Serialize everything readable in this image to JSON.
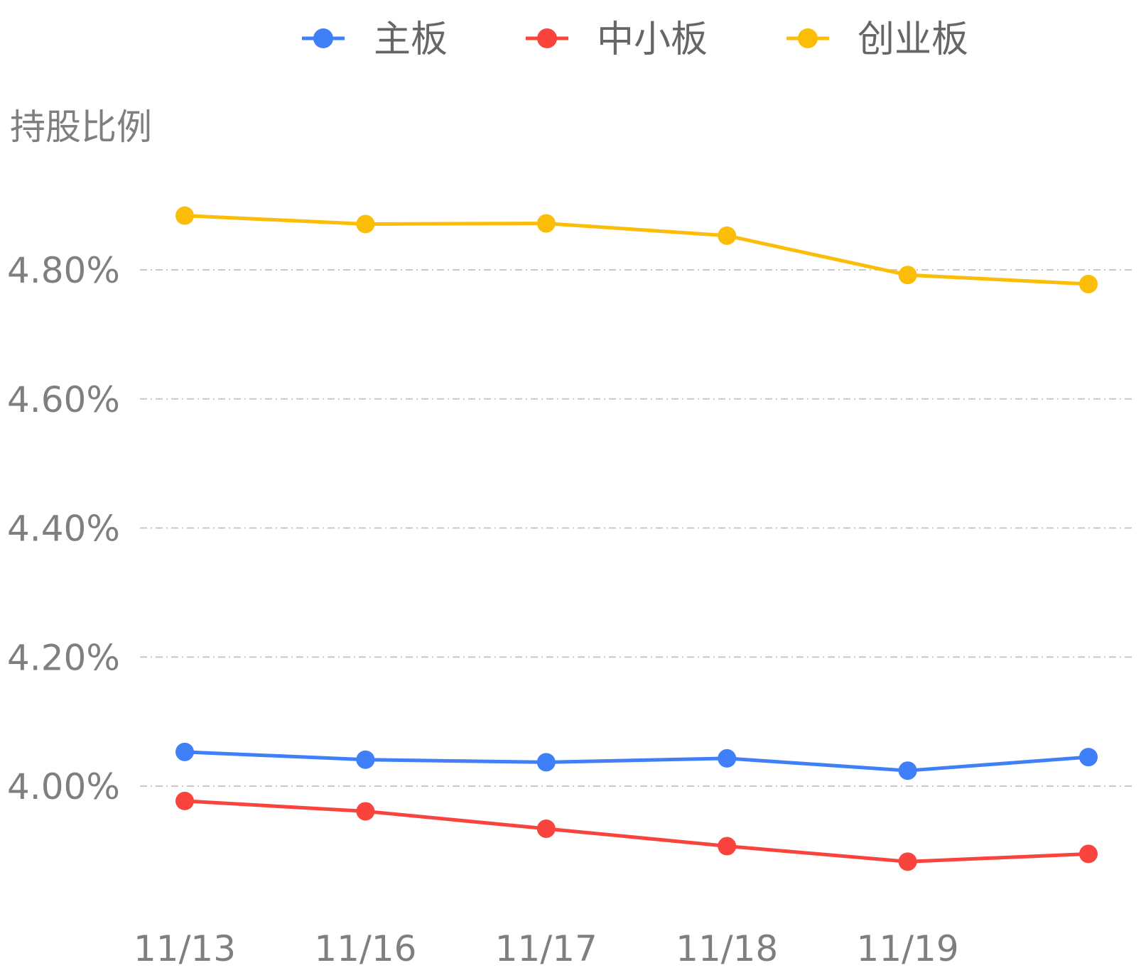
{
  "chart_data": {
    "type": "line",
    "ylabel": "持股比例",
    "categories": [
      "11/13",
      "11/16",
      "11/17",
      "11/18",
      "11/19",
      ""
    ],
    "ylim": [
      3.8,
      4.93
    ],
    "yticks": [
      4.0,
      4.2,
      4.4,
      4.6,
      4.8
    ],
    "ytick_labels": [
      "4.00%",
      "4.20%",
      "4.40%",
      "4.60%",
      "4.80%"
    ],
    "grid": true,
    "legend_position": "top-center",
    "series": [
      {
        "name": "主板",
        "color": "#3f7ff8",
        "values": [
          4.053,
          4.041,
          4.037,
          4.043,
          4.024,
          4.045
        ]
      },
      {
        "name": "中小板",
        "color": "#f8443d",
        "values": [
          3.977,
          3.961,
          3.934,
          3.907,
          3.883,
          3.895
        ]
      },
      {
        "name": "创业板",
        "color": "#fbbd08",
        "values": [
          4.884,
          4.871,
          4.872,
          4.853,
          4.792,
          4.778
        ]
      }
    ]
  }
}
